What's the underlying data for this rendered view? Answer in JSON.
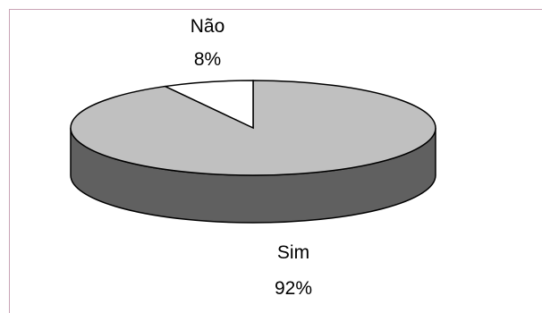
{
  "colors": {
    "background": "#ffffff",
    "frame": "#c9a3b6",
    "sim_top": "#c0c0c0",
    "sim_side": "#606060",
    "nao_top": "#ffffff",
    "outline": "#000000"
  },
  "chart_data": {
    "type": "pie",
    "title": "",
    "three_d": true,
    "slices": [
      {
        "label": "Sim",
        "value": 92,
        "value_label": "92%"
      },
      {
        "label": "Não",
        "value": 8,
        "value_label": "8%"
      }
    ]
  }
}
